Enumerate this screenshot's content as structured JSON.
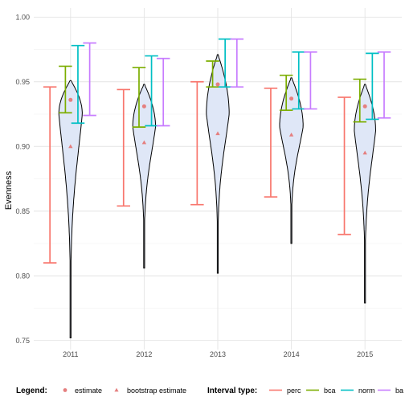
{
  "chart_data": {
    "type": "violin",
    "ylabel": "Evenness",
    "xlabel": "",
    "ylim": [
      0.743,
      1.007
    ],
    "yticks": [
      0.75,
      0.8,
      0.85,
      0.9,
      0.95,
      1.0
    ],
    "ytick_labels": [
      "0.75",
      "0.80",
      "0.85",
      "0.90",
      "0.95",
      "1.00"
    ],
    "categories": [
      "2011",
      "2012",
      "2013",
      "2014",
      "2015"
    ],
    "grid": true,
    "legend_position": "bottom",
    "colors": {
      "violin_fill": "#dfe7f7",
      "violin_outline": "#000000",
      "estimate": "#e57f7f",
      "bootstrap_estimate": "#e57f7f",
      "perc": "#f8766d",
      "bca": "#7cae00",
      "norm": "#00bfc4",
      "basic": "#c77cff"
    },
    "violins": [
      {
        "category": "2011",
        "min": 0.752,
        "max": 0.951,
        "mode": 0.925,
        "width": 0.32,
        "skew": 0.55
      },
      {
        "category": "2012",
        "min": 0.806,
        "max": 0.948,
        "mode": 0.915,
        "width": 0.31,
        "skew": 0.6
      },
      {
        "category": "2013",
        "min": 0.802,
        "max": 0.971,
        "mode": 0.925,
        "width": 0.31,
        "skew": 0.6
      },
      {
        "category": "2014",
        "min": 0.825,
        "max": 0.953,
        "mode": 0.915,
        "width": 0.32,
        "skew": 0.6
      },
      {
        "category": "2015",
        "min": 0.779,
        "max": 0.948,
        "mode": 0.912,
        "width": 0.29,
        "skew": 0.55
      }
    ],
    "estimate": [
      0.936,
      0.931,
      0.948,
      0.937,
      0.931
    ],
    "bootstrap_estimate": [
      0.9,
      0.903,
      0.91,
      0.909,
      0.895
    ],
    "intervals": [
      {
        "name": "perc",
        "lower": [
          0.81,
          0.854,
          0.855,
          0.861,
          0.832
        ],
        "upper": [
          0.946,
          0.944,
          0.95,
          0.945,
          0.938
        ]
      },
      {
        "name": "bca",
        "lower": [
          0.926,
          0.915,
          0.946,
          0.928,
          0.919
        ],
        "upper": [
          0.962,
          0.961,
          0.966,
          0.955,
          0.952
        ]
      },
      {
        "name": "norm",
        "lower": [
          0.918,
          0.916,
          0.946,
          0.929,
          0.921
        ],
        "upper": [
          0.978,
          0.97,
          0.983,
          0.973,
          0.972
        ]
      },
      {
        "name": "basic",
        "lower": [
          0.924,
          0.916,
          0.946,
          0.929,
          0.922
        ],
        "upper": [
          0.98,
          0.968,
          0.983,
          0.973,
          0.973
        ]
      }
    ],
    "legend": {
      "title1": "Legend:",
      "item_estimate": "estimate",
      "item_bootstrap": "bootstrap estimate",
      "title2": "Interval type:",
      "item_perc": "perc",
      "item_bca": "bca",
      "item_norm": "norm",
      "item_basic": "ba"
    }
  }
}
